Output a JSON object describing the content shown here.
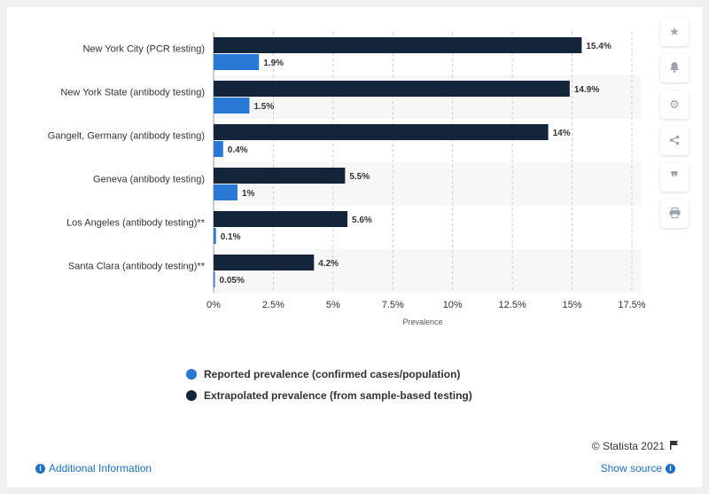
{
  "chart_data": {
    "type": "bar",
    "orientation": "horizontal",
    "categories": [
      "New York City (PCR testing)",
      "New York State (antibody testing)",
      "Gangelt, Germany (antibody testing)",
      "Geneva (antibody testing)",
      "Los Angeles (antibody testing)**",
      "Santa Clara (antibody testing)**"
    ],
    "series": [
      {
        "name": "Extrapolated prevalence (from sample-based testing)",
        "color": "#13243b",
        "values": [
          15.4,
          14.9,
          14,
          5.5,
          5.6,
          4.2
        ],
        "labels": [
          "15.4%",
          "14.9%",
          "14%",
          "5.5%",
          "5.6%",
          "4.2%"
        ]
      },
      {
        "name": "Reported prevalence (confirmed cases/population)",
        "color": "#2a78d6",
        "values": [
          1.9,
          1.5,
          0.4,
          1,
          0.1,
          0.05
        ],
        "labels": [
          "1.9%",
          "1.5%",
          "0.4%",
          "1%",
          "0.1%",
          "0.05%"
        ]
      }
    ],
    "xlim": [
      0,
      17.5
    ],
    "xticks": [
      0,
      2.5,
      5,
      7.5,
      10,
      12.5,
      15,
      17.5
    ],
    "xtick_labels": [
      "0%",
      "2.5%",
      "5%",
      "7.5%",
      "10%",
      "12.5%",
      "15%",
      "17.5%"
    ],
    "xlabel": "Prevalence",
    "ylabel": "",
    "title": "",
    "grid": "vertical dashed",
    "legend_position": "bottom"
  },
  "legend": {
    "items": [
      {
        "label": "Reported prevalence (confirmed cases/population)",
        "color": "#2a78d6"
      },
      {
        "label": "Extrapolated prevalence (from sample-based testing)",
        "color": "#13243b"
      }
    ]
  },
  "toolbar": {
    "icons": [
      "star-icon",
      "bell-icon",
      "gear-icon",
      "share-icon",
      "quote-icon",
      "print-icon"
    ]
  },
  "footer": {
    "copyright": "© Statista 2021",
    "additional_info": "Additional Information",
    "show_source": "Show source"
  }
}
